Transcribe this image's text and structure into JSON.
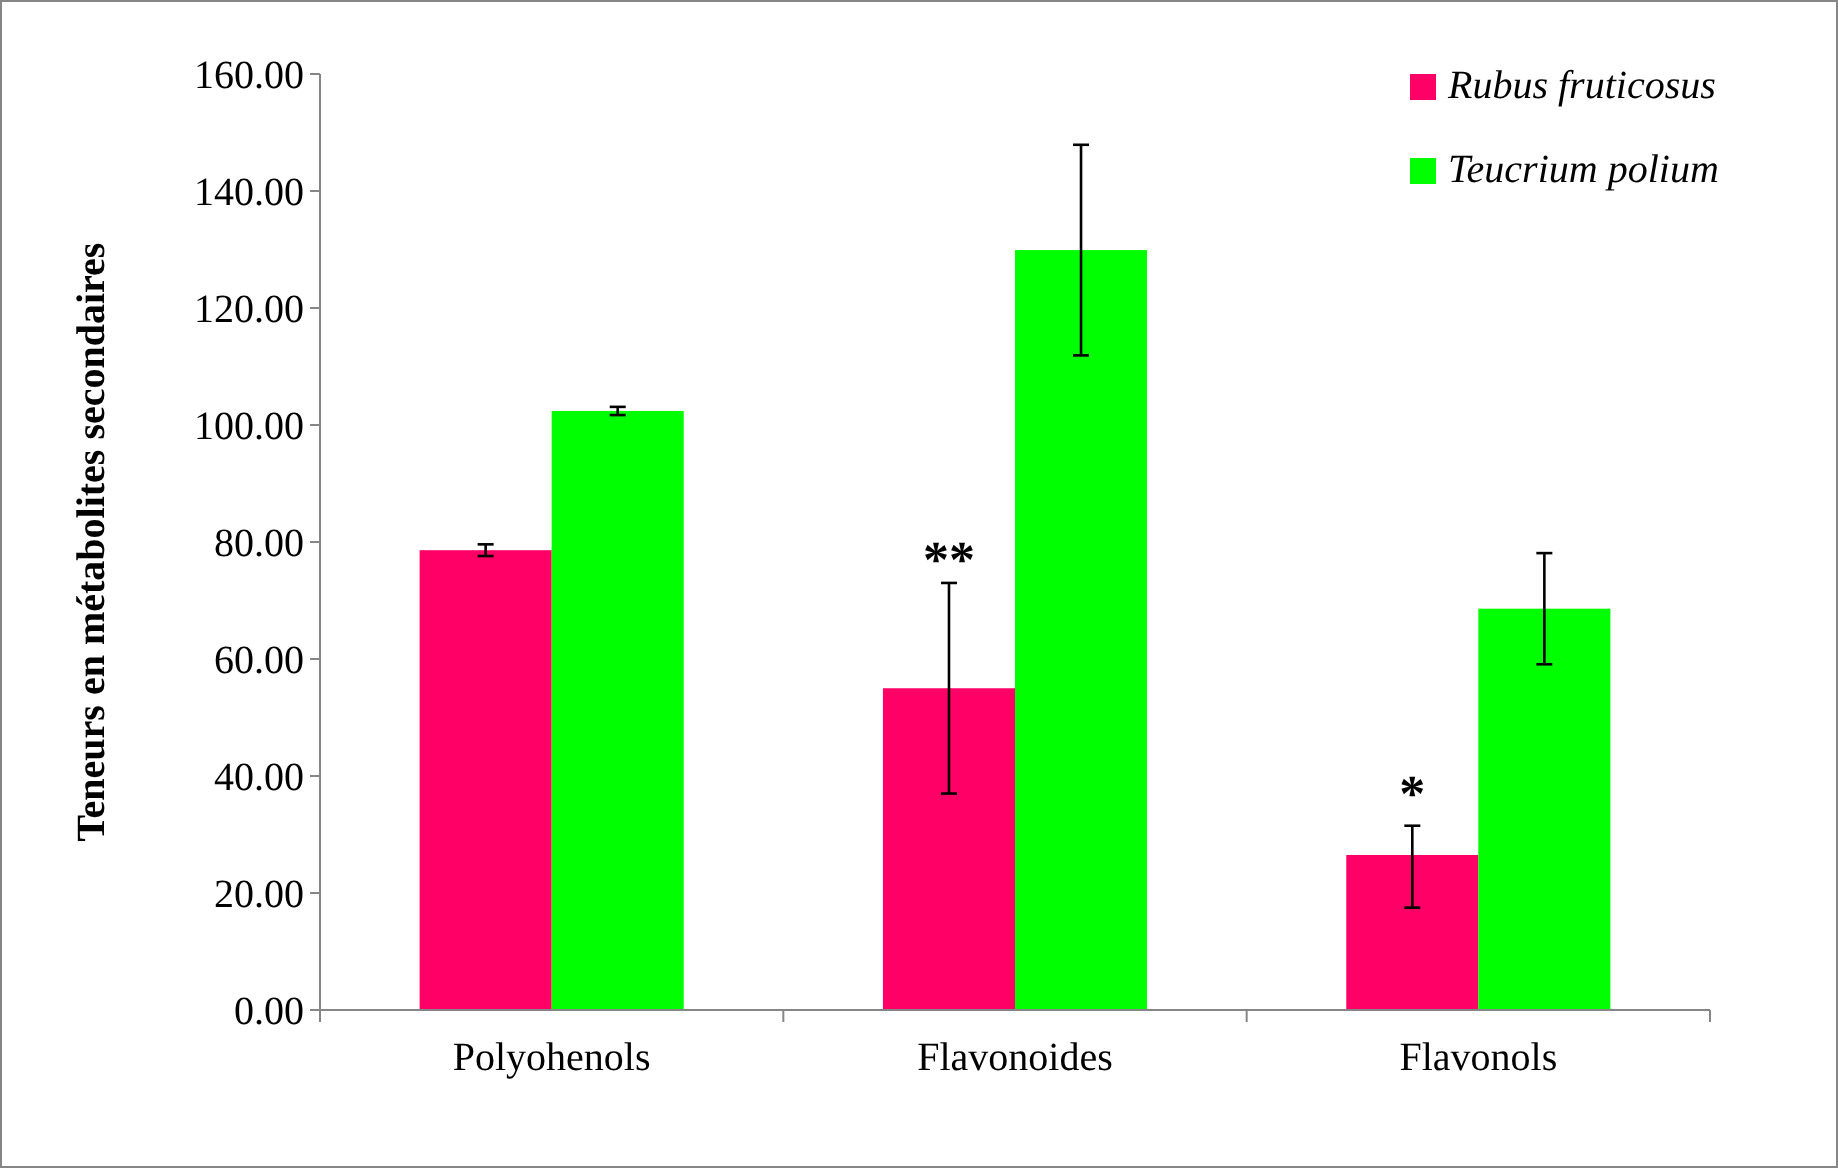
{
  "chart_data": {
    "type": "bar",
    "ylabel": "Teneurs en métabolites secondaires",
    "categories": [
      "Polyohenols",
      "Flavonoides",
      "Flavonols"
    ],
    "series": [
      {
        "name": "Rubus fruticosus",
        "color": "#ff0066",
        "values": [
          78.6,
          55.0,
          26.5
        ],
        "errors": [
          1,
          18,
          [
            17.5,
            31.5
          ]
        ]
      },
      {
        "name": "Teucrium polium",
        "color": "#00ff00",
        "values": [
          102.4,
          129.9,
          68.6
        ],
        "errors": [
          0.7,
          18,
          9.5
        ]
      }
    ],
    "ylim": [
      0,
      160
    ],
    "yticks": [
      {
        "value": 0,
        "label": "0.00"
      },
      {
        "value": 20,
        "label": "20.00"
      },
      {
        "value": 40,
        "label": "40.00"
      },
      {
        "value": 60,
        "label": "60.00"
      },
      {
        "value": 80,
        "label": "80.00"
      },
      {
        "value": 100,
        "label": "100.00"
      },
      {
        "value": 120,
        "label": "120.00"
      },
      {
        "value": 140,
        "label": "140.00"
      },
      {
        "value": 160,
        "label": "160.00"
      }
    ],
    "annotations": [
      {
        "text": "**",
        "x": "Flavonoides",
        "y": 72
      },
      {
        "text": "*",
        "x": "Flavonols",
        "y": 32
      }
    ],
    "legend": "top right",
    "grid": false
  }
}
